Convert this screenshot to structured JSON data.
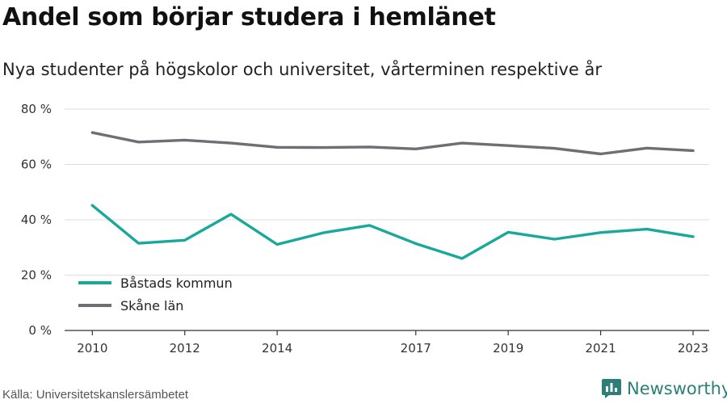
{
  "title": "Andel som börjar studera i hemlänet",
  "subtitle": "Nya studenter på högskolor och universitet, vårterminen respektive år",
  "source": "Källa: Universitetskanslersämbetet",
  "brand": {
    "name": "Newsworthy",
    "icon": "newsworthy-logo-icon",
    "color": "#2b7f78"
  },
  "chart_data": {
    "type": "line",
    "title": "Andel som börjar studera i hemlänet",
    "subtitle": "Nya studenter på högskolor och universitet, vårterminen respektive år",
    "x": [
      2010,
      2011,
      2012,
      2013,
      2014,
      2015,
      2016,
      2017,
      2018,
      2019,
      2020,
      2021,
      2022,
      2023
    ],
    "x_tick_labels": [
      "2010",
      "2012",
      "2014",
      "2017",
      "2019",
      "2021",
      "2023"
    ],
    "x_tick_values": [
      2010,
      2012,
      2014,
      2017,
      2019,
      2021,
      2023
    ],
    "xlim": [
      2009.4,
      2023.35
    ],
    "ylim": [
      0,
      80
    ],
    "y_ticks": [
      0,
      20,
      40,
      60,
      80
    ],
    "y_tick_labels": [
      "0 %",
      "20 %",
      "40 %",
      "60 %",
      "80 %"
    ],
    "grid": true,
    "legend_position": "bottom-left",
    "series": [
      {
        "name": "Båstads kommun",
        "color": "#1aa89a",
        "values": [
          45.2,
          31.5,
          32.6,
          42.0,
          31.1,
          35.3,
          38.0,
          31.4,
          26.0,
          35.5,
          33.0,
          35.4,
          36.6,
          33.9
        ]
      },
      {
        "name": "Skåne län",
        "color": "#6e6e74",
        "values": [
          71.5,
          68.1,
          68.8,
          67.7,
          66.2,
          66.1,
          66.3,
          65.6,
          67.7,
          66.8,
          65.8,
          63.8,
          65.9,
          65.0
        ]
      }
    ]
  }
}
